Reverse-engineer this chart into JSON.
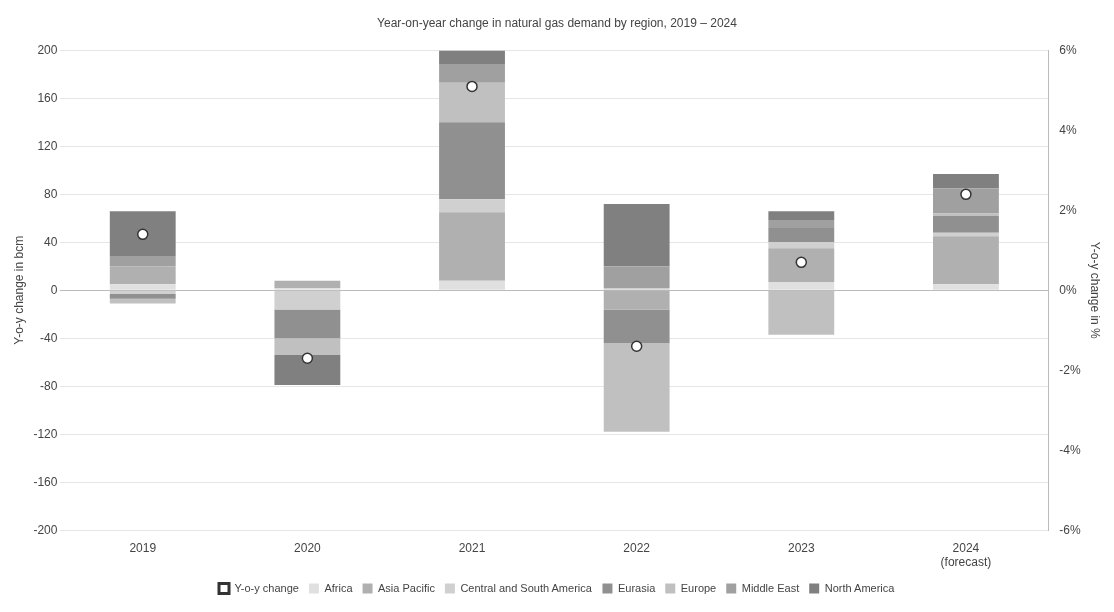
{
  "chart_data": {
    "type": "bar",
    "title": "Year-on-year change in natural gas demand by region, 2019 – 2024",
    "ylabel": "Y-o-y change in bcm",
    "y2label": "Y-o-y change in %",
    "categories": [
      "2019",
      "2020",
      "2021",
      "2022",
      "2023",
      "2024 (forecast)"
    ],
    "stacked": true,
    "grid": "y",
    "legend": "bottom",
    "ylim": [
      -200,
      200
    ],
    "yticks": [
      -200,
      -160,
      -120,
      -80,
      -40,
      0,
      40,
      80,
      120,
      160,
      200
    ],
    "y2lim": [
      -6,
      6
    ],
    "y2ticks": [
      {
        "value": -6,
        "label": "-6%"
      },
      {
        "value": -4,
        "label": "-4%"
      },
      {
        "value": -2,
        "label": "-2%"
      },
      {
        "value": 0,
        "label": "0%"
      },
      {
        "value": 2,
        "label": "2%"
      },
      {
        "value": 4,
        "label": "4%"
      },
      {
        "value": 6,
        "label": "6%"
      }
    ],
    "series": [
      {
        "name": "Africa",
        "color": "#e0e0e0",
        "values": [
          5,
          2,
          8,
          null,
          7,
          5
        ]
      },
      {
        "name": "Asia Pacific",
        "color": "#b0b0b0",
        "values": [
          15,
          6,
          57,
          -16,
          28,
          40
        ]
      },
      {
        "name": "Central and South America",
        "color": "#d0d0d0",
        "values": [
          -3,
          -16,
          11,
          2,
          5,
          3
        ]
      },
      {
        "name": "Eurasia",
        "color": "#909090",
        "values": [
          -4,
          -24,
          64,
          -28,
          12,
          14
        ]
      },
      {
        "name": "Europe",
        "color": "#c0c0c0",
        "values": [
          -4,
          -14,
          33,
          -74,
          -37,
          2
        ]
      },
      {
        "name": "Middle East",
        "color": "#a0a0a0",
        "values": [
          8,
          null,
          15,
          18,
          6,
          21
        ]
      },
      {
        "name": "North America",
        "color": "#808080",
        "values": [
          38,
          -25,
          12,
          52,
          8,
          12
        ]
      },
      {
        "name": "Y-o-y change",
        "type": "scatter",
        "axis": "y2",
        "color": "#ffffff",
        "marker": "circle",
        "values": [
          1.4,
          -1.7,
          5.1,
          -1.4,
          0.7,
          2.4
        ]
      }
    ]
  }
}
